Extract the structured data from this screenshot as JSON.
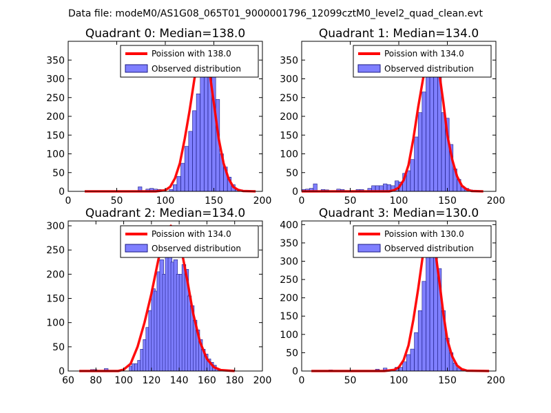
{
  "suptitle": "Data file: modeM0/AS1G08_065T01_9000001796_12099cztM0_level2_quad_clean.evt",
  "legend": {
    "observed_label": "Observed distribution"
  },
  "colors": {
    "curve": "#ff0000",
    "bar_fill": "#7f7fff",
    "bar_edge": "#1a1a80"
  },
  "chart_data": [
    {
      "type": "bar",
      "title": "Quadrant 0: Median=138.0",
      "poisson_label": "Poission with 138.0",
      "xlim": [
        0,
        200
      ],
      "ylim": [
        0,
        400
      ],
      "xticks": [
        0,
        50,
        100,
        150,
        200
      ],
      "yticks": [
        0,
        50,
        100,
        150,
        200,
        250,
        300,
        350
      ],
      "bin_width": 3.9,
      "bins": [
        [
          72,
          12
        ],
        [
          80,
          6
        ],
        [
          84,
          8
        ],
        [
          88,
          6
        ],
        [
          92,
          5
        ],
        [
          104,
          5
        ],
        [
          108,
          18
        ],
        [
          112,
          40
        ],
        [
          116,
          75
        ],
        [
          120,
          120
        ],
        [
          124,
          160
        ],
        [
          128,
          215
        ],
        [
          132,
          260
        ],
        [
          136,
          330
        ],
        [
          140,
          375
        ],
        [
          144,
          325
        ],
        [
          148,
          305
        ],
        [
          152,
          245
        ],
        [
          156,
          100
        ],
        [
          160,
          65
        ],
        [
          164,
          38
        ],
        [
          168,
          18
        ],
        [
          172,
          6
        ],
        [
          176,
          4
        ],
        [
          180,
          2
        ],
        [
          184,
          2
        ]
      ],
      "curve": [
        [
          17,
          0
        ],
        [
          90,
          0
        ],
        [
          100,
          3
        ],
        [
          105,
          12
        ],
        [
          110,
          35
        ],
        [
          115,
          75
        ],
        [
          120,
          140
        ],
        [
          125,
          215
        ],
        [
          130,
          300
        ],
        [
          135,
          360
        ],
        [
          138,
          375
        ],
        [
          142,
          362
        ],
        [
          146,
          310
        ],
        [
          150,
          235
        ],
        [
          155,
          140
        ],
        [
          160,
          75
        ],
        [
          165,
          35
        ],
        [
          170,
          12
        ],
        [
          175,
          4
        ],
        [
          180,
          1
        ],
        [
          193,
          0
        ]
      ]
    },
    {
      "type": "bar",
      "title": "Quadrant 1: Median=134.0",
      "poisson_label": "Poission with 134.0",
      "xlim": [
        0,
        200
      ],
      "ylim": [
        0,
        400
      ],
      "xticks": [
        0,
        50,
        100,
        150,
        200
      ],
      "yticks": [
        0,
        50,
        100,
        150,
        200,
        250,
        300,
        350
      ],
      "bin_width": 3.9,
      "bins": [
        [
          0,
          5
        ],
        [
          4,
          6
        ],
        [
          8,
          8
        ],
        [
          12,
          20
        ],
        [
          20,
          5
        ],
        [
          24,
          4
        ],
        [
          36,
          6
        ],
        [
          40,
          5
        ],
        [
          56,
          5
        ],
        [
          60,
          5
        ],
        [
          68,
          8
        ],
        [
          72,
          15
        ],
        [
          76,
          15
        ],
        [
          80,
          15
        ],
        [
          84,
          20
        ],
        [
          88,
          18
        ],
        [
          92,
          15
        ],
        [
          96,
          28
        ],
        [
          100,
          25
        ],
        [
          104,
          48
        ],
        [
          108,
          55
        ],
        [
          112,
          85
        ],
        [
          116,
          145
        ],
        [
          120,
          210
        ],
        [
          124,
          265
        ],
        [
          128,
          325
        ],
        [
          132,
          355
        ],
        [
          136,
          350
        ],
        [
          140,
          340
        ],
        [
          144,
          210
        ],
        [
          148,
          195
        ],
        [
          152,
          125
        ],
        [
          156,
          60
        ],
        [
          160,
          32
        ],
        [
          164,
          12
        ],
        [
          168,
          8
        ],
        [
          172,
          4
        ],
        [
          176,
          3
        ],
        [
          180,
          2
        ]
      ],
      "curve": [
        [
          0,
          0
        ],
        [
          90,
          0
        ],
        [
          95,
          3
        ],
        [
          100,
          10
        ],
        [
          105,
          30
        ],
        [
          110,
          70
        ],
        [
          115,
          140
        ],
        [
          120,
          225
        ],
        [
          125,
          300
        ],
        [
          130,
          355
        ],
        [
          134,
          372
        ],
        [
          138,
          360
        ],
        [
          142,
          310
        ],
        [
          146,
          235
        ],
        [
          150,
          150
        ],
        [
          155,
          85
        ],
        [
          160,
          40
        ],
        [
          165,
          15
        ],
        [
          170,
          5
        ],
        [
          175,
          1
        ],
        [
          187,
          0
        ]
      ]
    },
    {
      "type": "bar",
      "title": "Quadrant 2: Median=134.0",
      "poisson_label": "Poission with 134.0",
      "xlim": [
        60,
        200
      ],
      "ylim": [
        0,
        310
      ],
      "xticks": [
        60,
        80,
        100,
        120,
        140,
        160,
        180,
        200
      ],
      "yticks": [
        0,
        50,
        100,
        150,
        200,
        250,
        300
      ],
      "bin_width": 2.8,
      "bins": [
        [
          76,
          3
        ],
        [
          78,
          3
        ],
        [
          86,
          5
        ],
        [
          104,
          10
        ],
        [
          106,
          15
        ],
        [
          108,
          15
        ],
        [
          110,
          22
        ],
        [
          112,
          45
        ],
        [
          114,
          65
        ],
        [
          116,
          90
        ],
        [
          118,
          125
        ],
        [
          120,
          170
        ],
        [
          122,
          165
        ],
        [
          124,
          205
        ],
        [
          126,
          230
        ],
        [
          128,
          200
        ],
        [
          130,
          260
        ],
        [
          132,
          265
        ],
        [
          134,
          225
        ],
        [
          136,
          230
        ],
        [
          138,
          200
        ],
        [
          140,
          200
        ],
        [
          142,
          220
        ],
        [
          144,
          210
        ],
        [
          146,
          155
        ],
        [
          148,
          135
        ],
        [
          150,
          105
        ],
        [
          152,
          85
        ],
        [
          154,
          65
        ],
        [
          156,
          45
        ],
        [
          158,
          35
        ],
        [
          160,
          25
        ],
        [
          162,
          18
        ],
        [
          164,
          12
        ],
        [
          166,
          5
        ],
        [
          168,
          3
        ],
        [
          170,
          2
        ],
        [
          172,
          2
        ]
      ],
      "curve": [
        [
          68,
          0
        ],
        [
          96,
          0
        ],
        [
          100,
          3
        ],
        [
          105,
          15
        ],
        [
          110,
          50
        ],
        [
          115,
          100
        ],
        [
          120,
          160
        ],
        [
          125,
          230
        ],
        [
          130,
          285
        ],
        [
          134,
          300
        ],
        [
          138,
          285
        ],
        [
          142,
          245
        ],
        [
          146,
          185
        ],
        [
          150,
          120
        ],
        [
          155,
          60
        ],
        [
          160,
          25
        ],
        [
          165,
          8
        ],
        [
          170,
          2
        ],
        [
          180,
          0
        ]
      ]
    },
    {
      "type": "bar",
      "title": "Quadrant 3: Median=130.0",
      "poisson_label": "Poission with 130.0",
      "xlim": [
        0,
        200
      ],
      "ylim": [
        0,
        410
      ],
      "xticks": [
        0,
        50,
        100,
        150,
        200
      ],
      "yticks": [
        0,
        50,
        100,
        150,
        200,
        250,
        300,
        350,
        400
      ],
      "bin_width": 3.9,
      "bins": [
        [
          28,
          3
        ],
        [
          76,
          5
        ],
        [
          84,
          8
        ],
        [
          96,
          10
        ],
        [
          100,
          10
        ],
        [
          104,
          25
        ],
        [
          108,
          45
        ],
        [
          112,
          60
        ],
        [
          116,
          105
        ],
        [
          120,
          165
        ],
        [
          124,
          245
        ],
        [
          128,
          330
        ],
        [
          132,
          360
        ],
        [
          136,
          320
        ],
        [
          140,
          280
        ],
        [
          144,
          165
        ],
        [
          148,
          90
        ],
        [
          152,
          50
        ],
        [
          156,
          22
        ],
        [
          160,
          8
        ],
        [
          164,
          4
        ],
        [
          168,
          3
        ],
        [
          172,
          2
        ]
      ],
      "curve": [
        [
          10,
          0
        ],
        [
          85,
          0
        ],
        [
          95,
          3
        ],
        [
          100,
          10
        ],
        [
          105,
          30
        ],
        [
          110,
          70
        ],
        [
          115,
          140
        ],
        [
          120,
          225
        ],
        [
          125,
          320
        ],
        [
          130,
          385
        ],
        [
          134,
          370
        ],
        [
          138,
          320
        ],
        [
          142,
          240
        ],
        [
          146,
          155
        ],
        [
          150,
          85
        ],
        [
          155,
          40
        ],
        [
          160,
          15
        ],
        [
          165,
          5
        ],
        [
          170,
          1
        ],
        [
          193,
          0
        ]
      ]
    }
  ]
}
